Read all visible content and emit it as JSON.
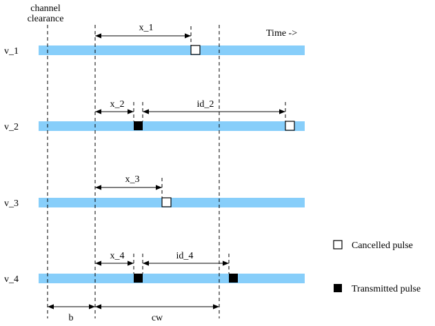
{
  "header": {
    "channel_label_line1": "channel",
    "channel_label_line2": "clearance",
    "time_label": "Time ->"
  },
  "vehicles": [
    {
      "label": "v_1"
    },
    {
      "label": "v_2"
    },
    {
      "label": "v_3"
    },
    {
      "label": "v_4"
    }
  ],
  "intervals": {
    "x_1": "x_1",
    "x_2": "x_2",
    "id_2": "id_2",
    "x_3": "x_3",
    "x_4": "x_4",
    "id_4": "id_4",
    "b": "b",
    "cw": "cw"
  },
  "legend": {
    "cancelled": "Cancelled pulse",
    "transmitted": "Transmitted pulse"
  },
  "colors": {
    "timeline": "#87cefa",
    "transmitted_fill": "#000000",
    "cancelled_fill": "#ffffff"
  }
}
